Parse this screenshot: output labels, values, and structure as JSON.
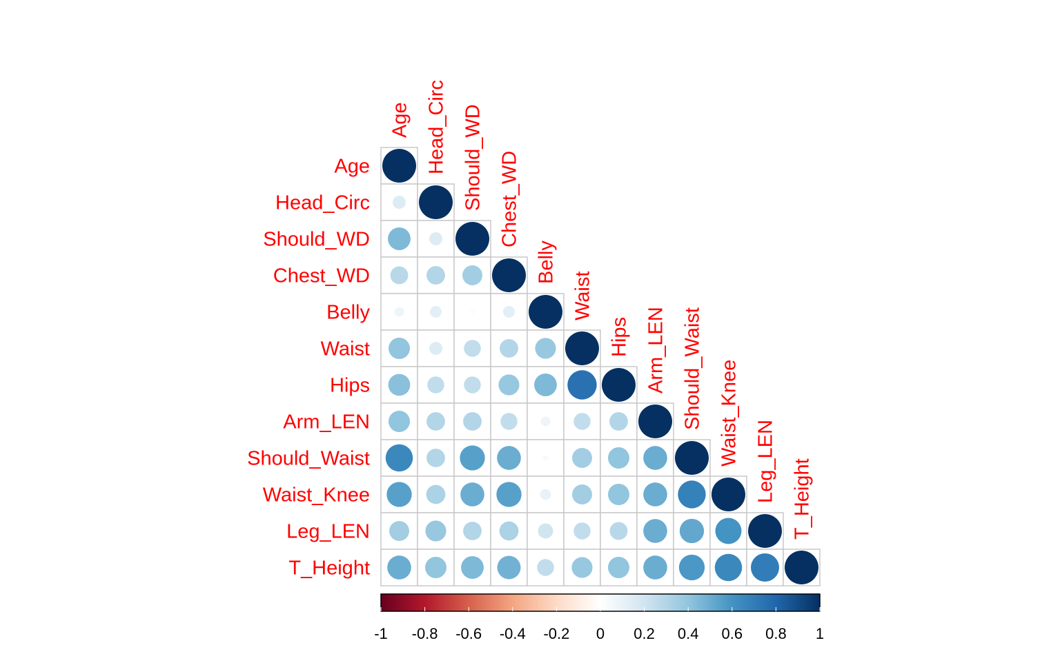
{
  "chart_data": {
    "type": "heatmap",
    "subtype": "correlation-circle-lower-triangle",
    "variables": [
      "Age",
      "Head_Circ",
      "Should_WD",
      "Chest_WD",
      "Belly",
      "Waist",
      "Hips",
      "Arm_LEN",
      "Should_Waist",
      "Waist_Knee",
      "Leg_LEN",
      "T_Height"
    ],
    "matrix": [
      [
        1.0
      ],
      [
        0.15,
        1.0
      ],
      [
        0.45,
        0.15,
        1.0
      ],
      [
        0.28,
        0.3,
        0.35,
        1.0
      ],
      [
        0.08,
        0.12,
        0.02,
        0.12,
        1.0
      ],
      [
        0.4,
        0.15,
        0.25,
        0.3,
        0.38,
        1.0
      ],
      [
        0.42,
        0.25,
        0.25,
        0.38,
        0.45,
        0.75,
        1.0
      ],
      [
        0.4,
        0.3,
        0.3,
        0.25,
        0.08,
        0.25,
        0.3,
        1.0
      ],
      [
        0.65,
        0.3,
        0.55,
        0.5,
        0.03,
        0.35,
        0.4,
        0.5,
        1.0
      ],
      [
        0.55,
        0.32,
        0.5,
        0.55,
        0.1,
        0.35,
        0.4,
        0.5,
        0.68,
        1.0
      ],
      [
        0.35,
        0.38,
        0.3,
        0.32,
        0.2,
        0.25,
        0.28,
        0.5,
        0.52,
        0.6,
        1.0
      ],
      [
        0.5,
        0.4,
        0.45,
        0.48,
        0.25,
        0.38,
        0.4,
        0.5,
        0.58,
        0.65,
        0.7,
        1.0
      ]
    ],
    "colorbar": {
      "range": [
        -1,
        1
      ],
      "ticks": [
        "-1",
        "-0.8",
        "-0.6",
        "-0.4",
        "-0.2",
        "0",
        "0.2",
        "0.4",
        "0.6",
        "0.8",
        "1"
      ],
      "colors": [
        "#67001f",
        "#b2182b",
        "#d6604d",
        "#f4a582",
        "#fddbc7",
        "#ffffff",
        "#d1e5f0",
        "#92c5de",
        "#4393c3",
        "#2166ac",
        "#053061"
      ]
    },
    "label_color": "#ff0000",
    "title": "",
    "xlabel": "",
    "ylabel": ""
  }
}
